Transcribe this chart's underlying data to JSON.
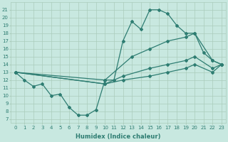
{
  "xlabel": "Humidex (Indice chaleur)",
  "xlim": [
    -0.5,
    23.5
  ],
  "ylim": [
    6.5,
    22
  ],
  "yticks": [
    7,
    8,
    9,
    10,
    11,
    12,
    13,
    14,
    15,
    16,
    17,
    18,
    19,
    20,
    21
  ],
  "xticks": [
    0,
    1,
    2,
    3,
    4,
    5,
    6,
    7,
    8,
    9,
    10,
    11,
    12,
    13,
    14,
    15,
    16,
    17,
    18,
    19,
    20,
    21,
    22,
    23
  ],
  "bg_color": "#c8e8e0",
  "line_color": "#2e7d72",
  "grid_color": "#aaccbb",
  "lines": [
    {
      "x": [
        0,
        1,
        2,
        3,
        4,
        5,
        6,
        7,
        8,
        9,
        10,
        11,
        12,
        13,
        14,
        15,
        16,
        17,
        18,
        19,
        20,
        21,
        22,
        23
      ],
      "y": [
        13,
        12,
        11.2,
        11.5,
        10,
        10.2,
        8.5,
        7.5,
        7.5,
        8.2,
        12,
        12,
        17,
        19.5,
        18.5,
        21,
        21,
        20.5,
        19,
        18,
        18,
        15.5,
        14.5,
        14
      ],
      "marker_x": [
        0,
        1,
        2,
        3,
        4,
        5,
        6,
        7,
        8,
        9,
        10,
        11,
        12,
        13,
        14,
        15,
        16,
        17,
        18,
        19,
        20,
        21,
        22,
        23
      ],
      "marker_y": [
        13,
        12,
        11.2,
        11.5,
        10,
        10.2,
        8.5,
        7.5,
        7.5,
        8.2,
        12,
        12,
        17,
        19.5,
        18.5,
        21,
        21,
        20.5,
        19,
        18,
        18,
        15.5,
        14.5,
        14
      ]
    },
    {
      "x": [
        0,
        10,
        13,
        15,
        17,
        19,
        20,
        22,
        23
      ],
      "y": [
        13,
        12,
        15,
        16,
        17,
        17.5,
        18,
        14.5,
        14
      ],
      "marker_x": [
        0,
        10,
        13,
        15,
        17,
        19,
        20,
        22,
        23
      ],
      "marker_y": [
        13,
        12,
        15,
        16,
        17,
        17.5,
        18,
        14.5,
        14
      ]
    },
    {
      "x": [
        0,
        10,
        12,
        15,
        17,
        19,
        20,
        22,
        23
      ],
      "y": [
        13,
        11.5,
        12.5,
        13.5,
        14,
        14.5,
        15,
        13.5,
        14
      ],
      "marker_x": [
        0,
        10,
        12,
        15,
        17,
        19,
        20,
        22,
        23
      ],
      "marker_y": [
        13,
        11.5,
        12.5,
        13.5,
        14,
        14.5,
        15,
        13.5,
        14
      ]
    },
    {
      "x": [
        0,
        10,
        12,
        15,
        17,
        19,
        20,
        22,
        23
      ],
      "y": [
        13,
        11.5,
        12,
        12.5,
        13,
        13.5,
        14,
        13,
        14
      ],
      "marker_x": [
        0,
        10,
        12,
        15,
        17,
        19,
        20,
        22,
        23
      ],
      "marker_y": [
        13,
        11.5,
        12,
        12.5,
        13,
        13.5,
        14,
        13,
        14
      ]
    }
  ]
}
